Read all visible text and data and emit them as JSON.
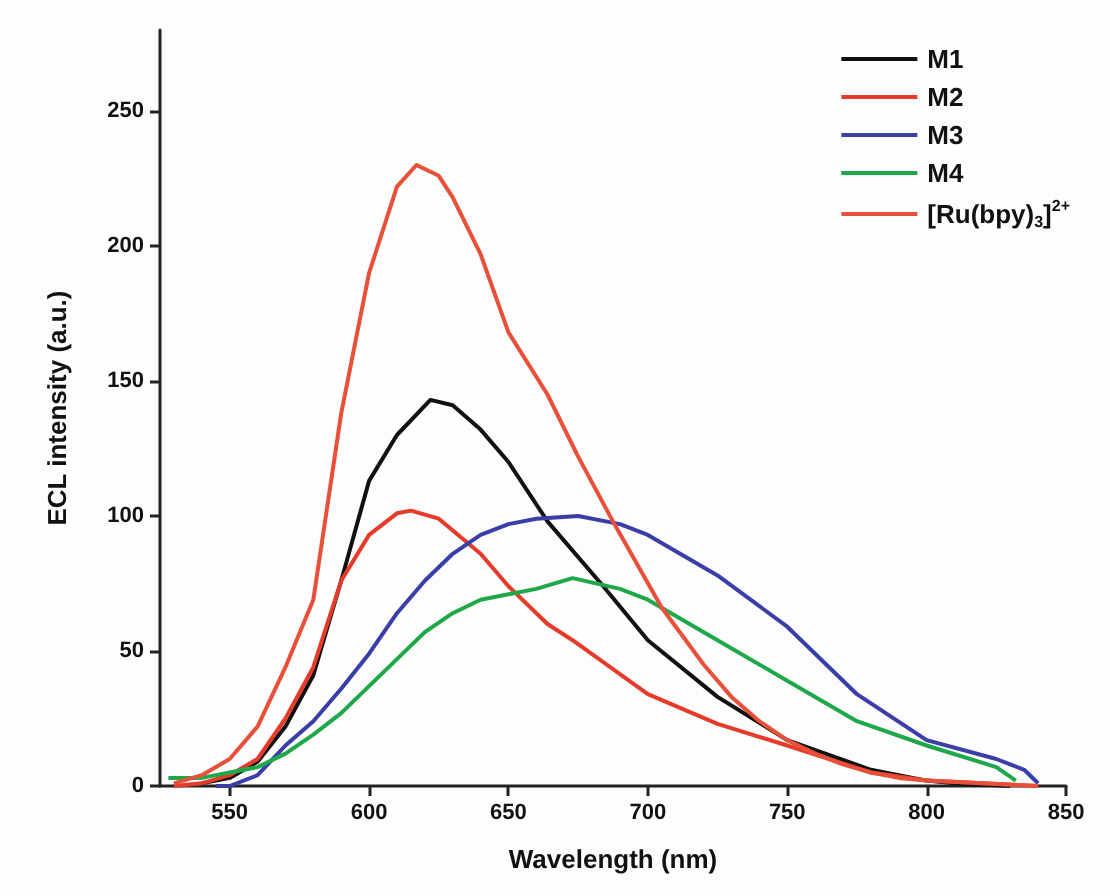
{
  "chart_data": {
    "type": "line",
    "xlabel": "Wavelength (nm)",
    "ylabel": "ECL intensity (a.u.)",
    "xlim": [
      525,
      850
    ],
    "ylim": [
      0,
      280
    ],
    "xticks": [
      550,
      600,
      650,
      700,
      750,
      800,
      850
    ],
    "yticks": [
      0,
      50,
      100,
      150,
      200,
      250
    ],
    "grid": false,
    "legend": "top right",
    "marker": "none",
    "line_style": "solid",
    "series": [
      {
        "name": "M1",
        "color": "#111111",
        "x": [
          540,
          550,
          560,
          570,
          580,
          590,
          600,
          610,
          622,
          630,
          640,
          650,
          664,
          684,
          700,
          725,
          750,
          780,
          800,
          810,
          830
        ],
        "values": [
          1,
          3,
          9,
          22,
          41,
          76,
          113,
          130,
          143,
          141,
          132,
          120,
          98,
          74,
          54,
          33,
          17,
          6,
          2,
          1,
          0
        ]
      },
      {
        "name": "M2",
        "color": "#e63b2a",
        "x": [
          530,
          540,
          550,
          560,
          570,
          580,
          590,
          600,
          610,
          615,
          625,
          640,
          650,
          664,
          673,
          700,
          725,
          750,
          780,
          800,
          820,
          840
        ],
        "values": [
          0,
          1,
          4,
          10,
          25,
          44,
          76,
          93,
          101,
          102,
          99,
          86,
          74,
          60,
          54,
          34,
          23,
          15,
          5,
          2,
          1,
          0
        ]
      },
      {
        "name": "M3",
        "color": "#3a3fa8",
        "x": [
          545,
          550,
          560,
          570,
          580,
          590,
          600,
          610,
          620,
          630,
          640,
          650,
          660,
          675,
          690,
          700,
          725,
          750,
          775,
          800,
          825,
          835,
          840
        ],
        "values": [
          0,
          0,
          4,
          15,
          24,
          36,
          49,
          64,
          76,
          86,
          93,
          97,
          99,
          100,
          97,
          93,
          78,
          59,
          34,
          17,
          10,
          6,
          1
        ]
      },
      {
        "name": "M4",
        "color": "#1fa84a",
        "x": [
          528,
          540,
          550,
          560,
          570,
          580,
          590,
          600,
          610,
          620,
          630,
          640,
          650,
          660,
          673,
          690,
          700,
          725,
          750,
          775,
          800,
          825,
          832
        ],
        "values": [
          3,
          3,
          5,
          7,
          12,
          19,
          27,
          37,
          47,
          57,
          64,
          69,
          71,
          73,
          77,
          73,
          69,
          54,
          39,
          24,
          15,
          7,
          2
        ]
      },
      {
        "name": "[Ru(bpy)$_{3}$]$^{2+}$",
        "color": "#e8503a",
        "x": [
          530,
          540,
          550,
          560,
          570,
          580,
          590,
          600,
          610,
          617,
          625,
          630,
          640,
          650,
          664,
          675,
          688,
          705,
          720,
          730,
          740,
          750,
          760,
          770,
          780,
          790,
          800,
          820,
          840
        ],
        "values": [
          1,
          4,
          10,
          22,
          44,
          69,
          138,
          190,
          222,
          230,
          226,
          218,
          197,
          168,
          145,
          122,
          97,
          66,
          45,
          33,
          24,
          17,
          12,
          8,
          5,
          3,
          2,
          1,
          0
        ]
      }
    ]
  }
}
